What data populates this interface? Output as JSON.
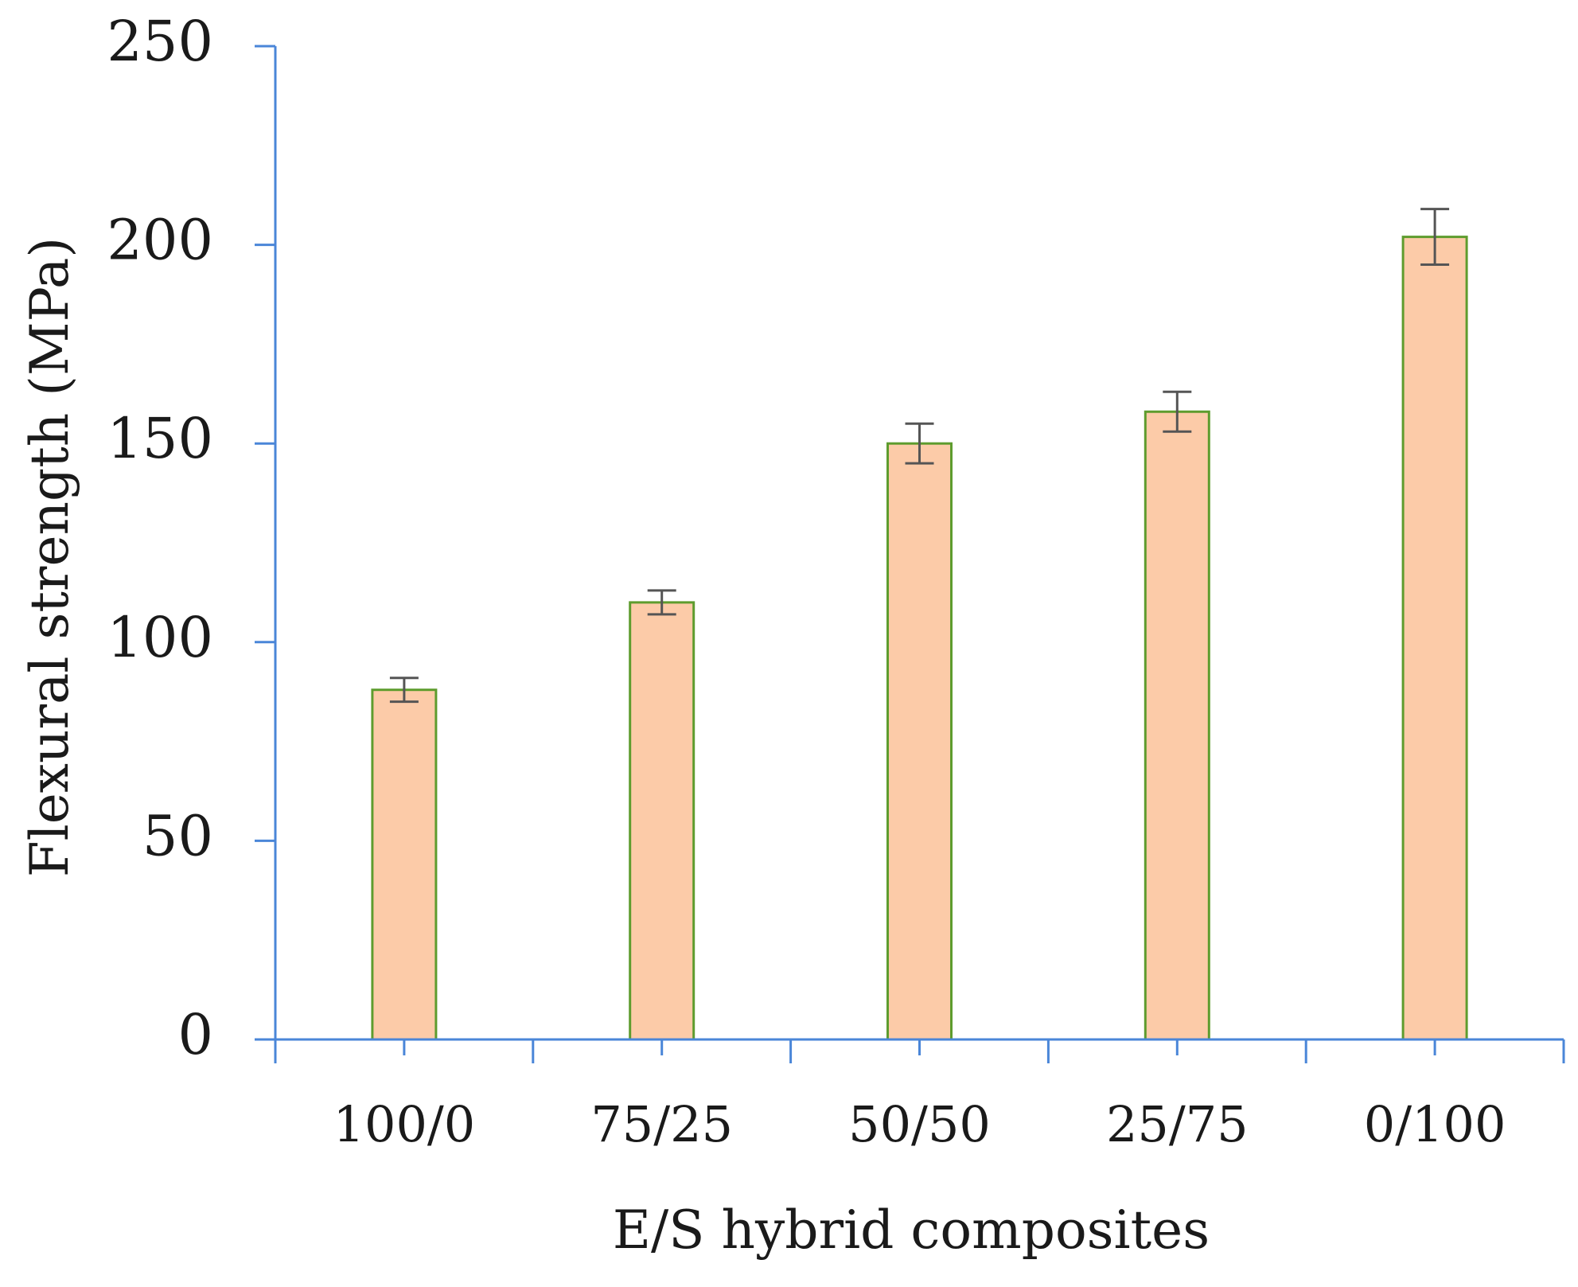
{
  "chart_data": {
    "type": "bar",
    "title": "",
    "xlabel": "E/S hybrid composites",
    "ylabel": "Flexural strength (MPa)",
    "categories": [
      "100/0",
      "75/25",
      "50/50",
      "25/75",
      "0/100"
    ],
    "series": [
      {
        "values": [
          88,
          110,
          150,
          158,
          202
        ],
        "errors": [
          3,
          3,
          5,
          5,
          7
        ]
      }
    ],
    "ylim": [
      0,
      250
    ],
    "yticks": [
      "0",
      "50",
      "100",
      "150",
      "200",
      "250"
    ],
    "ytick_values": [
      0,
      50,
      100,
      150,
      200,
      250
    ],
    "grid": false,
    "legend": "none",
    "colors": {
      "bar_fill": "#FCCBA8",
      "bar_edge": "#5E9C2E",
      "axis": "#4A86D8",
      "error_bar": "#555555"
    }
  }
}
